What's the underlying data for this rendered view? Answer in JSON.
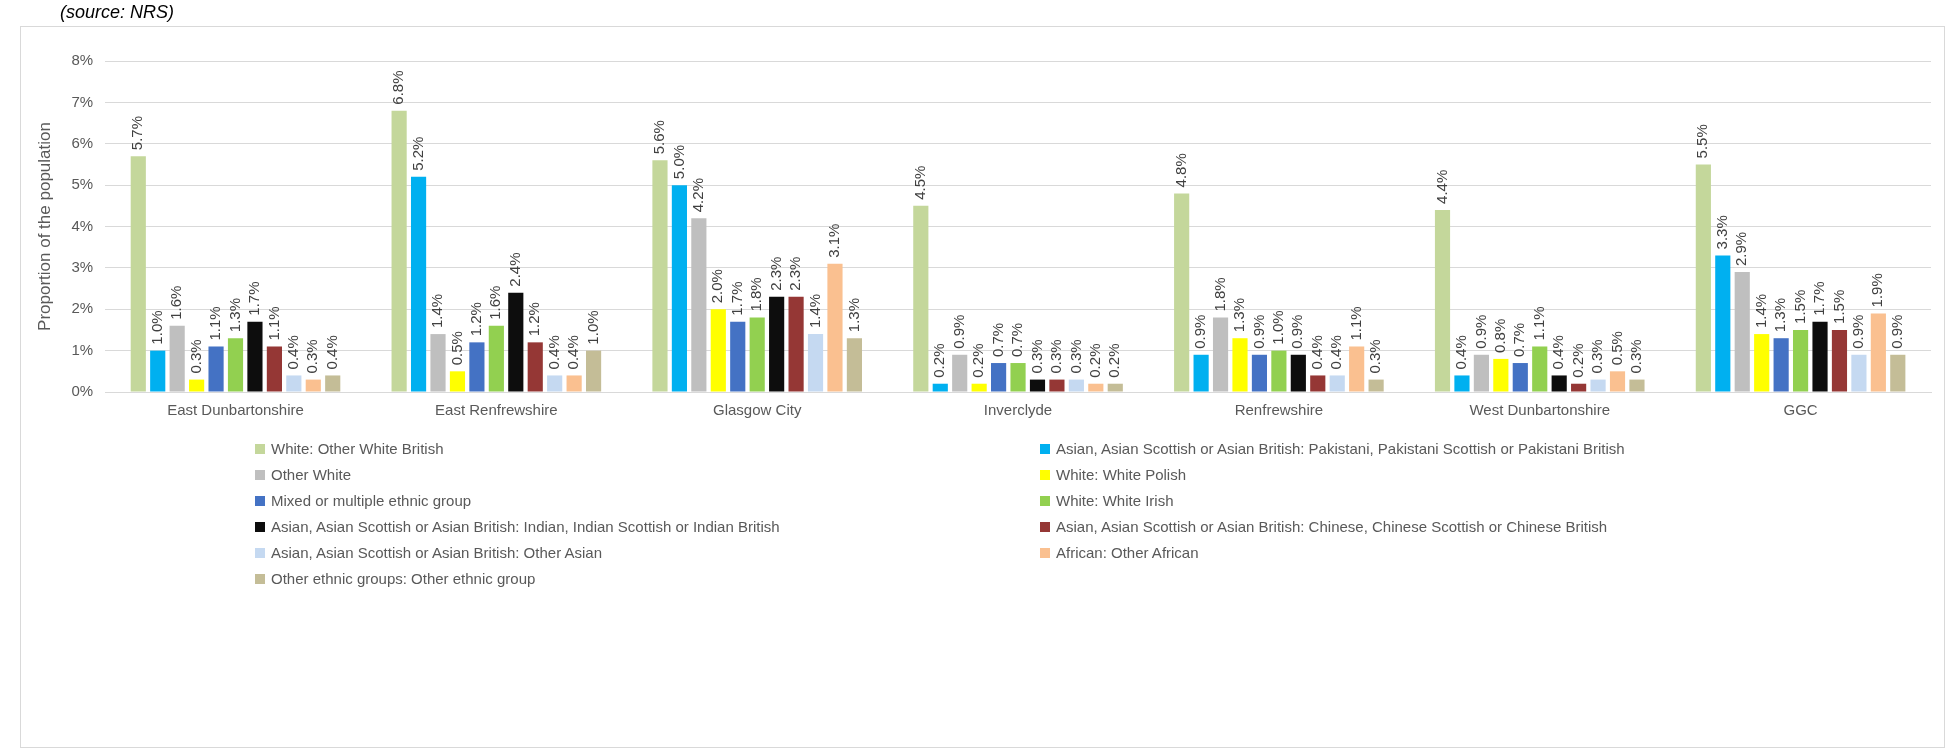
{
  "chart_data": {
    "type": "bar",
    "ylabel": "Proportion of the population",
    "annotations": [
      "(source: NRS)"
    ],
    "categories": [
      "East Dunbartonshire",
      "East Renfrewshire",
      "Glasgow City",
      "Inverclyde",
      "Renfrewshire",
      "West Dunbartonshire",
      "GGC"
    ],
    "ylim": [
      0,
      8
    ],
    "yticks": [
      {
        "value": 0,
        "label": "0%"
      },
      {
        "value": 1,
        "label": "1%"
      },
      {
        "value": 2,
        "label": "2%"
      },
      {
        "value": 3,
        "label": "3%"
      },
      {
        "value": 4,
        "label": "4%"
      },
      {
        "value": 5,
        "label": "5%"
      },
      {
        "value": 6,
        "label": "6%"
      },
      {
        "value": 7,
        "label": "7%"
      },
      {
        "value": 8,
        "label": "8%"
      }
    ],
    "grid": "y",
    "legend": "bottom",
    "series": [
      {
        "name": "White: Other White British",
        "color": "#c4d79b",
        "values": [
          5.7,
          6.8,
          5.6,
          4.5,
          4.8,
          4.4,
          5.5
        ],
        "value_labels": [
          "5.7%",
          "6.8%",
          "5.6%",
          "4.5%",
          "4.8%",
          "4.4%",
          "5.5%"
        ]
      },
      {
        "name": "Asian, Asian Scottish or Asian British: Pakistani, Pakistani Scottish or Pakistani British",
        "color": "#00b0f0",
        "values": [
          1.0,
          5.2,
          5.0,
          0.2,
          0.9,
          0.4,
          3.3
        ],
        "value_labels": [
          "1.0%",
          "5.2%",
          "5.0%",
          "0.2%",
          "0.9%",
          "0.4%",
          "3.3%"
        ]
      },
      {
        "name": "Other White",
        "color": "#bfbfbf",
        "values": [
          1.6,
          1.4,
          4.2,
          0.9,
          1.8,
          0.9,
          2.9
        ],
        "value_labels": [
          "1.6%",
          "1.4%",
          "4.2%",
          "0.9%",
          "1.8%",
          "0.9%",
          "2.9%"
        ]
      },
      {
        "name": "White: White Polish",
        "color": "#ffff00",
        "values": [
          0.3,
          0.5,
          2.0,
          0.2,
          1.3,
          0.8,
          1.4
        ],
        "value_labels": [
          "0.3%",
          "0.5%",
          "2.0%",
          "0.2%",
          "1.3%",
          "0.8%",
          "1.4%"
        ]
      },
      {
        "name": "Mixed or multiple ethnic group",
        "color": "#4472c4",
        "values": [
          1.1,
          1.2,
          1.7,
          0.7,
          0.9,
          0.7,
          1.3
        ],
        "value_labels": [
          "1.1%",
          "1.2%",
          "1.7%",
          "0.7%",
          "0.9%",
          "0.7%",
          "1.3%"
        ]
      },
      {
        "name": "White: White Irish",
        "color": "#92d050",
        "values": [
          1.3,
          1.6,
          1.8,
          0.7,
          1.0,
          1.1,
          1.5
        ],
        "value_labels": [
          "1.3%",
          "1.6%",
          "1.8%",
          "0.7%",
          "1.0%",
          "1.1%",
          "1.5%"
        ]
      },
      {
        "name": "Asian, Asian Scottish or Asian British: Indian, Indian Scottish or Indian British",
        "color": "#0d0d0d",
        "values": [
          1.7,
          2.4,
          2.3,
          0.3,
          0.9,
          0.4,
          1.7
        ],
        "value_labels": [
          "1.7%",
          "2.4%",
          "2.3%",
          "0.3%",
          "0.9%",
          "0.4%",
          "1.7%"
        ]
      },
      {
        "name": "Asian, Asian Scottish or Asian British: Chinese, Chinese Scottish or Chinese British",
        "color": "#953735",
        "values": [
          1.1,
          1.2,
          2.3,
          0.3,
          0.4,
          0.2,
          1.5
        ],
        "value_labels": [
          "1.1%",
          "1.2%",
          "2.3%",
          "0.3%",
          "0.4%",
          "0.2%",
          "1.5%"
        ]
      },
      {
        "name": "Asian, Asian Scottish or Asian British: Other Asian",
        "color": "#c5d9f1",
        "values": [
          0.4,
          0.4,
          1.4,
          0.3,
          0.4,
          0.3,
          0.9
        ],
        "value_labels": [
          "0.4%",
          "0.4%",
          "1.4%",
          "0.3%",
          "0.4%",
          "0.3%",
          "0.9%"
        ]
      },
      {
        "name": "African: Other African",
        "color": "#fac090",
        "values": [
          0.3,
          0.4,
          3.1,
          0.2,
          1.1,
          0.5,
          1.9
        ],
        "value_labels": [
          "0.3%",
          "0.4%",
          "3.1%",
          "0.2%",
          "1.1%",
          "0.5%",
          "1.9%"
        ]
      },
      {
        "name": "Other ethnic groups: Other ethnic group",
        "color": "#c4bd97",
        "values": [
          0.4,
          1.0,
          1.3,
          0.2,
          0.3,
          0.3,
          0.9
        ],
        "value_labels": [
          "0.4%",
          "1.0%",
          "1.3%",
          "0.2%",
          "0.3%",
          "0.3%",
          "0.9%"
        ]
      }
    ]
  }
}
